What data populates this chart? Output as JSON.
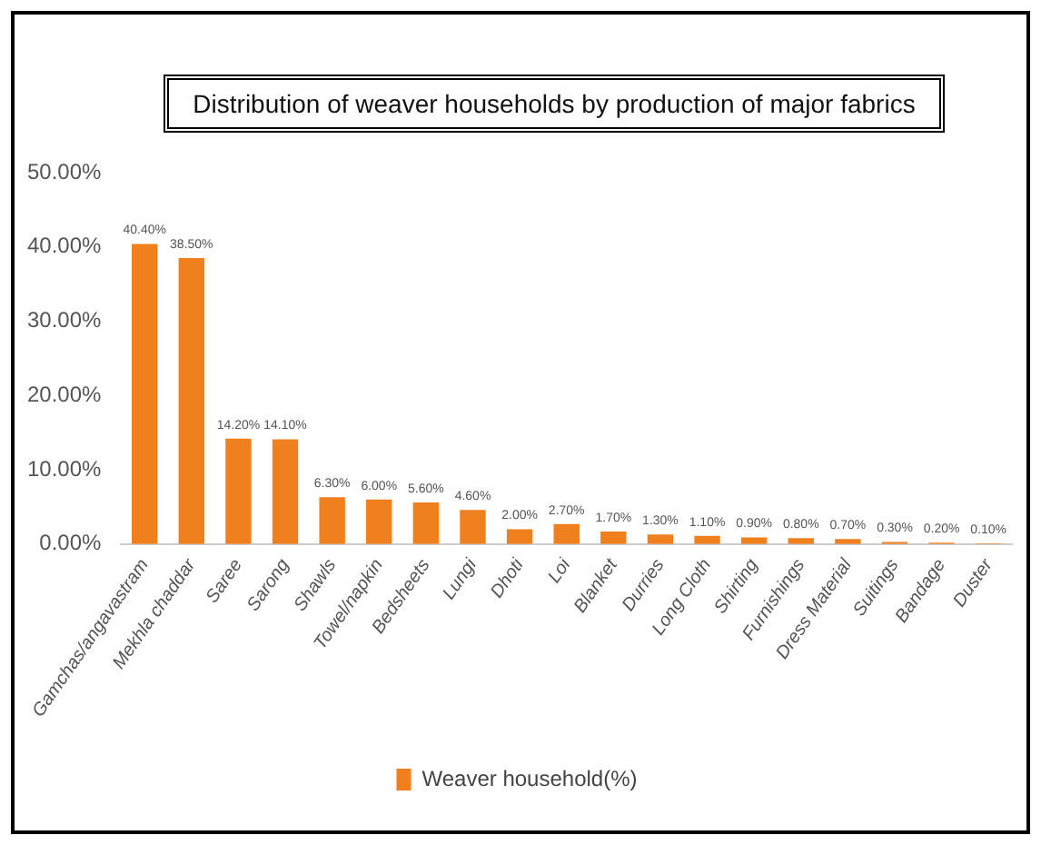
{
  "chart_data": {
    "type": "bar",
    "title": "Distribution of weaver households by production of major fabrics",
    "categories": [
      "Gamchas/angavastram",
      "Mekhla chaddar",
      "Saree",
      "Sarong",
      "Shawls",
      "Towel/napkin",
      "Bedsheets",
      "Lungi",
      "Dhoti",
      "Loi",
      "Blanket",
      "Durries",
      "Long Cloth",
      "Shirting",
      "Furnishings",
      "Dress Material",
      "Suitings",
      "Bandage",
      "Duster"
    ],
    "series": [
      {
        "name": "Weaver household(%)",
        "color": "#f07f1e",
        "values": [
          40.4,
          38.5,
          14.2,
          14.1,
          6.3,
          6.0,
          5.6,
          4.6,
          2.0,
          2.7,
          1.7,
          1.3,
          1.1,
          0.9,
          0.8,
          0.7,
          0.3,
          0.2,
          0.1
        ],
        "value_labels": [
          "40.40%",
          "38.50%",
          "14.20%",
          "14.10%",
          "6.30%",
          "6.00%",
          "5.60%",
          "4.60%",
          "2.00%",
          "2.70%",
          "1.70%",
          "1.30%",
          "1.10%",
          "0.90%",
          "0.80%",
          "0.70%",
          "0.30%",
          "0.20%",
          "0.10%"
        ]
      }
    ],
    "ylim": [
      0,
      50
    ],
    "yticks": [
      {
        "value": 0,
        "label": "0.00%"
      },
      {
        "value": 10,
        "label": "10.00%"
      },
      {
        "value": 20,
        "label": "20.00%"
      },
      {
        "value": 30,
        "label": "30.00%"
      },
      {
        "value": 40,
        "label": "40.00%"
      },
      {
        "value": 50,
        "label": "50.00%"
      }
    ],
    "grid": false,
    "legend": "bottom"
  }
}
